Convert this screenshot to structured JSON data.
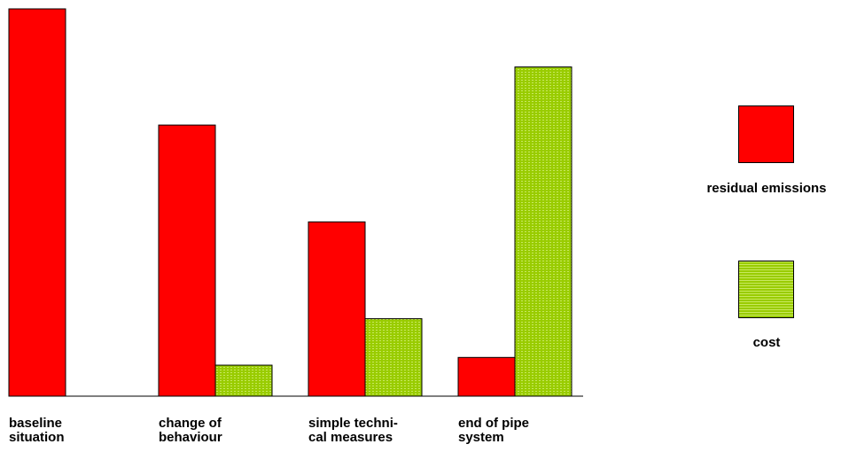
{
  "chart_data": {
    "type": "bar",
    "categories": [
      "baseline\nsituation",
      "change of\nbehaviour",
      "simple techni-\ncal measures",
      "end of pipe\nsystem"
    ],
    "series": [
      {
        "name": "residual emissions",
        "color": "#ff0000",
        "values": [
          100,
          70,
          45,
          10
        ]
      },
      {
        "name": "cost",
        "color": "#99cc00",
        "values": [
          0,
          8,
          20,
          85
        ]
      }
    ],
    "ylim": [
      0,
      100
    ],
    "grid": false,
    "legend": "right"
  }
}
